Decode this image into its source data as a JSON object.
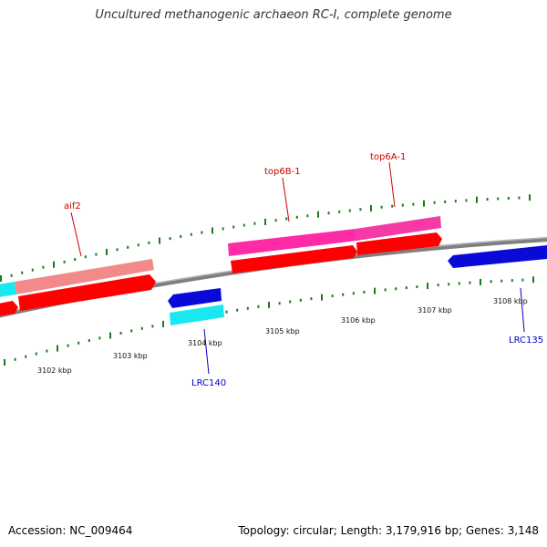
{
  "title": "Uncultured methanogenic archaeon RC-I, complete genome",
  "footer": {
    "accession": "Accession: NC_009464",
    "topology": "Topology: circular; Length: 3,179,916 bp; Genes: 3,148"
  },
  "colors": {
    "backbone": "#8a8a8a",
    "tick": "#1a7a1a",
    "forward_gene_label": "#cc0000",
    "reverse_gene_label": "#0000cc",
    "cds": "#ff0000",
    "gene_pink": "#ff2aa6",
    "gene_salmon": "#f28a8a",
    "gene_blue": "#0a0ad8",
    "gene_cyan": "#1ae8f0"
  },
  "scale_labels": [
    "3102 kbp",
    "3103 kbp",
    "3104 kbp",
    "3105 kbp",
    "3106 kbp",
    "3107 kbp",
    "3108 kbp"
  ],
  "gene_labels": [
    {
      "name": "aif2",
      "strand": "forward"
    },
    {
      "name": "top6B-1",
      "strand": "forward"
    },
    {
      "name": "top6A-1",
      "strand": "forward"
    },
    {
      "name": "LRC140",
      "strand": "reverse"
    },
    {
      "name": "LRC135",
      "strand": "reverse"
    }
  ]
}
